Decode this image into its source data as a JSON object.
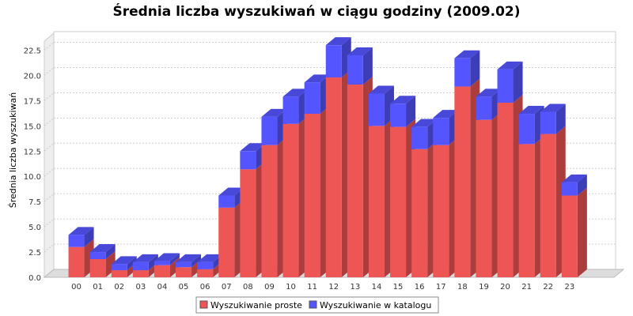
{
  "chart_data": {
    "type": "bar",
    "stacked": true,
    "title": "Średnia liczba wyszukiwań w ciągu godziny (2009.02)",
    "ylabel": "Średnia liczba wyszukiwań",
    "xlabel": "",
    "categories": [
      "00",
      "01",
      "02",
      "03",
      "04",
      "05",
      "06",
      "07",
      "08",
      "09",
      "10",
      "11",
      "12",
      "13",
      "14",
      "15",
      "16",
      "17",
      "18",
      "19",
      "20",
      "21",
      "22",
      "23"
    ],
    "ylim": [
      0,
      24.5
    ],
    "yticks": [
      "0.0",
      "2.5",
      "5.0",
      "7.5",
      "10.0",
      "12.5",
      "15.0",
      "17.5",
      "20.0",
      "22.5"
    ],
    "grid": true,
    "legend_position": "bottom",
    "series": [
      {
        "name": "Wyszukiwanie proste",
        "color": "#ee5555",
        "values": [
          3.0,
          1.8,
          0.7,
          0.7,
          1.2,
          1.0,
          0.8,
          6.9,
          10.7,
          13.1,
          15.2,
          16.2,
          19.8,
          19.1,
          15.0,
          14.9,
          12.7,
          13.1,
          18.9,
          15.6,
          17.3,
          13.2,
          14.2,
          8.1
        ]
      },
      {
        "name": "Wyszukiwanie w katalogu",
        "color": "#5555ff",
        "values": [
          1.2,
          0.7,
          0.6,
          0.8,
          0.4,
          0.5,
          0.7,
          1.2,
          1.8,
          2.8,
          2.7,
          3.1,
          3.2,
          2.9,
          3.2,
          2.3,
          2.2,
          2.7,
          2.8,
          2.3,
          3.3,
          3.0,
          2.2,
          1.3
        ]
      }
    ]
  }
}
